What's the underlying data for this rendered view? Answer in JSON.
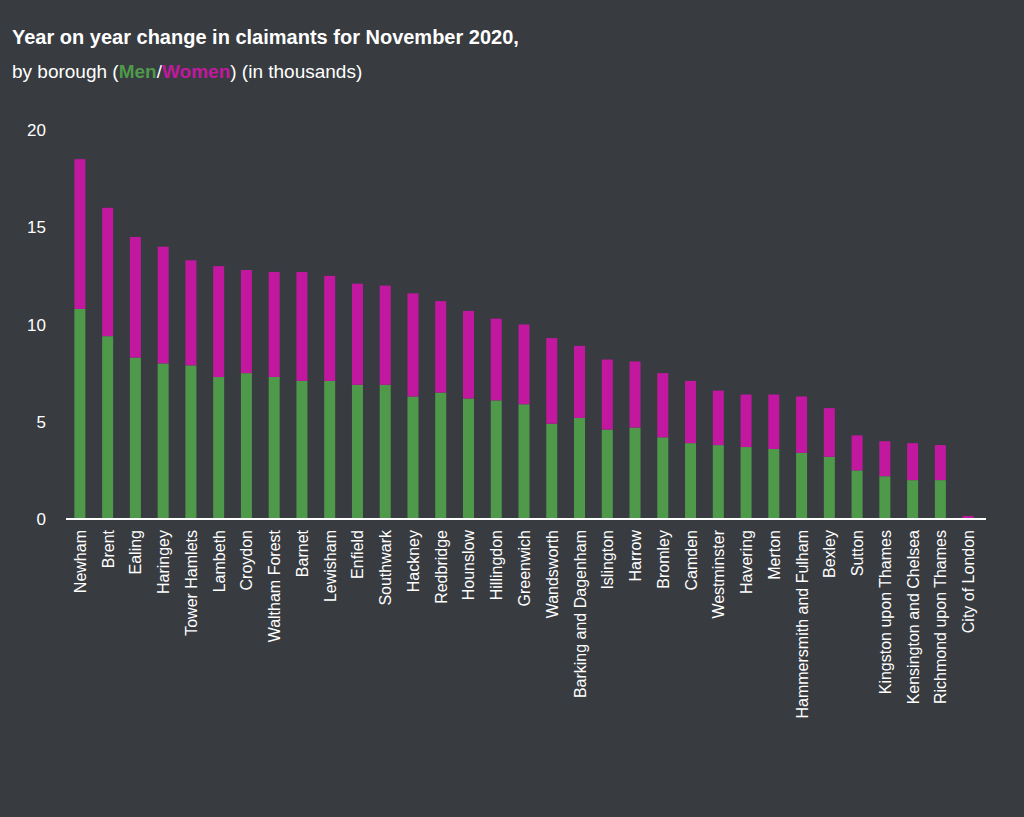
{
  "chart_data": {
    "type": "bar",
    "stacked": true,
    "title": "Year on year change in claimants for November 2020,",
    "subtitle": "by borough (Men/Women) (in thousands)",
    "categories": [
      "Newham",
      "Brent",
      "Ealing",
      "Haringey",
      "Tower Hamlets",
      "Lambeth",
      "Croydon",
      "Waltham Forest",
      "Barnet",
      "Lewisham",
      "Enfield",
      "Southwark",
      "Hackney",
      "Redbridge",
      "Hounslow",
      "Hillingdon",
      "Greenwich",
      "Wandsworth",
      "Barking and Dagenham",
      "Islington",
      "Harrow",
      "Bromley",
      "Camden",
      "Westminster",
      "Havering",
      "Merton",
      "Hammersmith and Fulham",
      "Bexley",
      "Sutton",
      "Kingston upon Thames",
      "Kensington and Chelsea",
      "Richmond upon Thames",
      "City of London"
    ],
    "series": [
      {
        "name": "Men",
        "color": "#4e9a4a",
        "values": [
          10.8,
          9.4,
          8.3,
          8.0,
          7.9,
          7.3,
          7.5,
          7.3,
          7.1,
          7.1,
          6.9,
          6.9,
          6.3,
          6.5,
          6.2,
          6.1,
          5.9,
          4.9,
          5.2,
          4.6,
          4.7,
          4.2,
          3.9,
          3.8,
          3.7,
          3.6,
          3.4,
          3.2,
          2.5,
          2.2,
          2.0,
          2.0,
          0.0
        ]
      },
      {
        "name": "Women",
        "color": "#c2189f",
        "values": [
          7.7,
          6.6,
          6.2,
          6.0,
          5.4,
          5.7,
          5.3,
          5.4,
          5.6,
          5.4,
          5.2,
          5.1,
          5.3,
          4.7,
          4.5,
          4.2,
          4.1,
          4.4,
          3.7,
          3.6,
          3.4,
          3.3,
          3.2,
          2.8,
          2.7,
          2.8,
          2.9,
          2.5,
          1.8,
          1.8,
          1.9,
          1.8,
          0.15
        ]
      }
    ],
    "ylim": [
      0,
      20
    ],
    "yticks": [
      0,
      5,
      10,
      15,
      20
    ],
    "grid": false
  }
}
